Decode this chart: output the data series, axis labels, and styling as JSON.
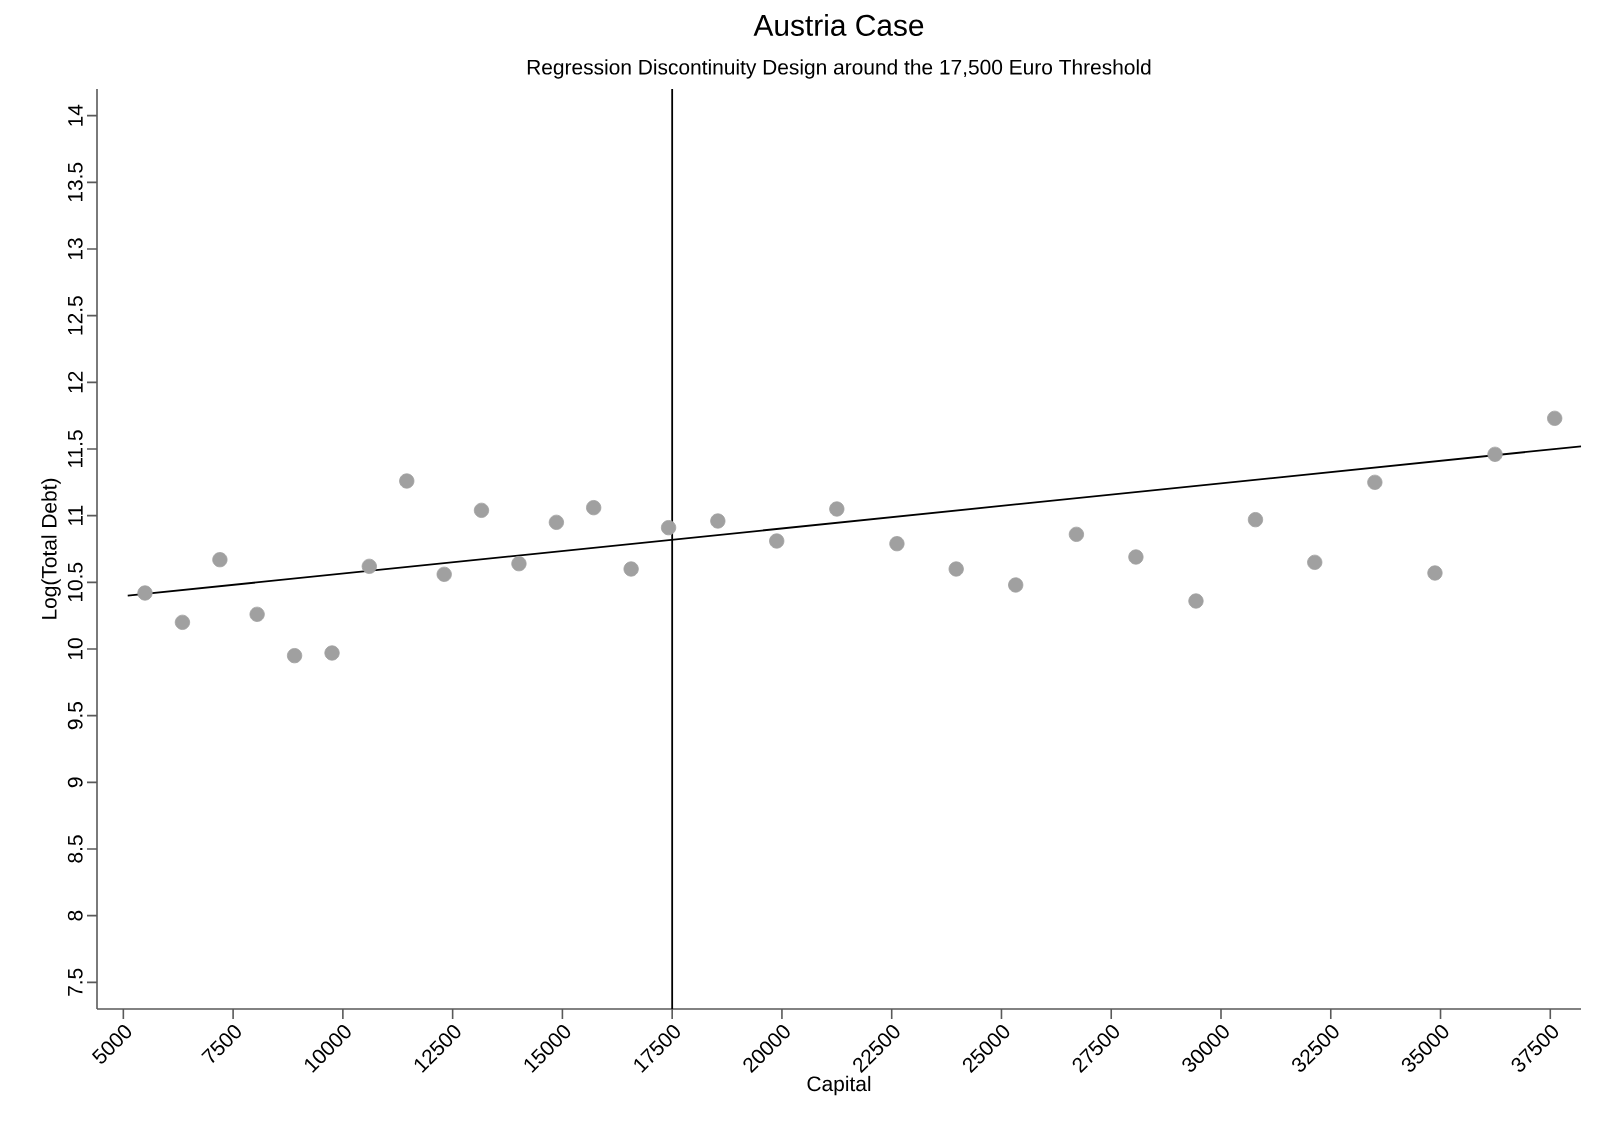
{
  "chart_data": {
    "type": "scatter",
    "title": "Austria Case",
    "subtitle": "Regression Discontinuity Design around the 17,500 Euro Threshold",
    "xlabel": "Capital",
    "ylabel": "Log(Total Debt)",
    "series": [
      {
        "color": "#a0a0a0",
        "marker": "circle",
        "x": [
          5493,
          6346,
          7199,
          8047,
          8900,
          9753,
          10602,
          11455,
          12308,
          13157,
          14010,
          14863,
          15712,
          16565,
          17418,
          18540,
          19881,
          21250,
          22619,
          23969,
          25324,
          26707,
          28062,
          29430,
          30785,
          32135,
          33504,
          34873,
          36241,
          37600
        ],
        "values": [
          10.42,
          10.2,
          10.67,
          10.26,
          9.95,
          9.97,
          10.62,
          11.26,
          10.56,
          11.04,
          10.64,
          10.95,
          11.06,
          10.6,
          10.91,
          10.96,
          10.81,
          11.05,
          10.79,
          10.6,
          10.48,
          10.86,
          10.69,
          10.36,
          10.97,
          10.65,
          11.25,
          10.57,
          11.46,
          11.73
        ]
      },
      {
        "type": "line",
        "color": "#000000",
        "marker": "none",
        "x": [
          5100,
          38200
        ],
        "values": [
          10.4,
          11.52
        ]
      }
    ],
    "ref_lines": [
      {
        "axis": "x",
        "value": 17500,
        "color": "#000000"
      }
    ],
    "xlim": [
      4400,
      38200
    ],
    "ylim": [
      7.3,
      14.2
    ],
    "xticks": [
      5000,
      7500,
      10000,
      12500,
      15000,
      17500,
      20000,
      22500,
      25000,
      27500,
      30000,
      32500,
      35000,
      37500
    ],
    "yticks": [
      7.5,
      8,
      8.5,
      9,
      9.5,
      10,
      10.5,
      11,
      11.5,
      12,
      12.5,
      13,
      13.5,
      14
    ],
    "grid": false
  }
}
